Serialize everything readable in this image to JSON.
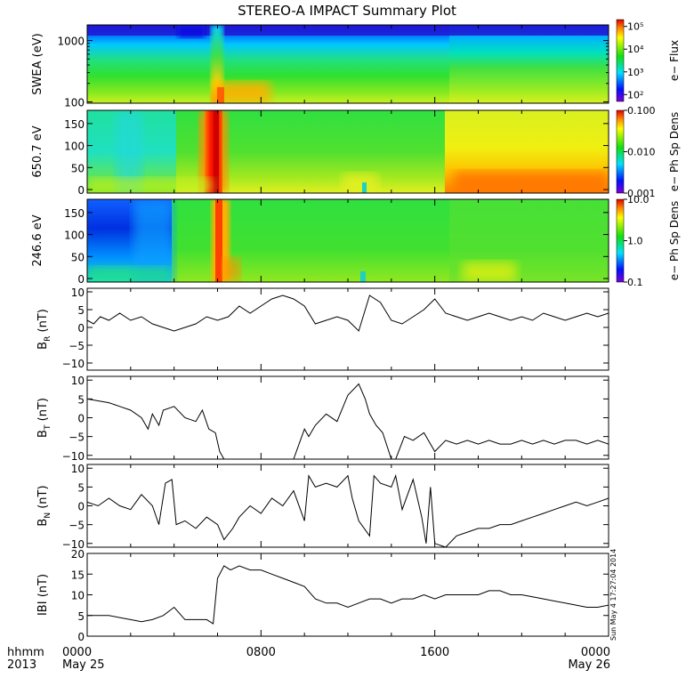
{
  "title": "STEREO-A IMPACT Summary Plot",
  "timestamp": "Sun May 4 17:27:04 2014",
  "x_axis": {
    "row1_label": "hhmm",
    "row2_label": "2013",
    "ticks": [
      {
        "hour": 0,
        "label": "0000",
        "date": "May 25"
      },
      {
        "hour": 8,
        "label": "0800",
        "date": ""
      },
      {
        "hour": 16,
        "label": "1600",
        "date": ""
      },
      {
        "hour": 24,
        "label": "0000",
        "date": "May 26"
      }
    ],
    "range_hours": [
      0,
      24
    ]
  },
  "chart_data": [
    {
      "type": "heatmap",
      "ylabel": "SWEA (eV)",
      "ylog": true,
      "ylim": [
        95,
        1800
      ],
      "yticks": [
        {
          "v": 100,
          "label": "100"
        },
        {
          "v": 1000,
          "label": "1000"
        }
      ],
      "colorbar_label": "e− Flux",
      "colorbar_log": true,
      "colorbar_range": [
        50,
        200000
      ],
      "colorbar_ticks": [
        {
          "v": 100,
          "label": "10²"
        },
        {
          "v": 1000,
          "label": "10³"
        },
        {
          "v": 10000,
          "label": "10⁴"
        },
        {
          "v": 100000,
          "label": "10⁵"
        }
      ],
      "features": [
        {
          "hour": 6.0,
          "kind": "enhancement"
        },
        {
          "hour": 16.6,
          "kind": "transition"
        }
      ]
    },
    {
      "type": "heatmap",
      "ylabel": "650.7 eV",
      "ylim": [
        -8,
        180
      ],
      "yticks": [
        {
          "v": 0,
          "label": "0"
        },
        {
          "v": 50,
          "label": "50"
        },
        {
          "v": 100,
          "label": "100"
        },
        {
          "v": 150,
          "label": "150"
        }
      ],
      "colorbar_label": "e− Ph Sp Dens",
      "colorbar_log": true,
      "colorbar_range": [
        0.001,
        0.1
      ],
      "colorbar_ticks": [
        {
          "v": 0.001,
          "label": "0.001"
        },
        {
          "v": 0.01,
          "label": "0.010"
        },
        {
          "v": 0.1,
          "label": "0.100"
        }
      ],
      "features": [
        {
          "hour": 5.9,
          "kind": "high-density band"
        },
        {
          "hour": 16.6,
          "kind": "transition"
        }
      ]
    },
    {
      "type": "heatmap",
      "ylabel": "246.6 eV",
      "ylim": [
        -8,
        180
      ],
      "yticks": [
        {
          "v": 0,
          "label": "0"
        },
        {
          "v": 50,
          "label": "50"
        },
        {
          "v": 100,
          "label": "100"
        },
        {
          "v": 150,
          "label": "150"
        }
      ],
      "colorbar_label": "e− Ph Sp Dens",
      "colorbar_log": true,
      "colorbar_range": [
        0.1,
        10
      ],
      "colorbar_ticks": [
        {
          "v": 0.1,
          "label": "0.1"
        },
        {
          "v": 1,
          "label": "1.0"
        },
        {
          "v": 10,
          "label": "10.0"
        }
      ],
      "features": [
        {
          "hour": 5.9,
          "kind": "high-density band"
        },
        {
          "hour": 4.0,
          "kind": "transition"
        }
      ]
    },
    {
      "type": "line",
      "ylabel": "BR (nT)",
      "ylabel_main": "B",
      "ylabel_sub": "R",
      "ylabel_unit": "(nT)",
      "ylim": [
        -12,
        11
      ],
      "yticks": [
        {
          "v": -10,
          "label": "−10"
        },
        {
          "v": -5,
          "label": "−5"
        },
        {
          "v": 0,
          "label": "0"
        },
        {
          "v": 5,
          "label": "5"
        },
        {
          "v": 10,
          "label": "10"
        }
      ],
      "x": [
        0,
        0.3,
        0.6,
        1,
        1.5,
        2,
        2.5,
        3,
        3.5,
        4,
        4.5,
        5,
        5.5,
        6,
        6.5,
        7,
        7.5,
        8,
        8.5,
        9,
        9.5,
        10,
        10.5,
        11,
        11.5,
        12,
        12.5,
        13,
        13.5,
        14,
        14.5,
        15,
        15.5,
        16,
        16.5,
        17,
        17.5,
        18,
        18.5,
        19,
        19.5,
        20,
        20.5,
        21,
        21.5,
        22,
        22.5,
        23,
        23.5,
        24
      ],
      "values": [
        2,
        1,
        3,
        2,
        4,
        2,
        3,
        1,
        0,
        -1,
        0,
        1,
        3,
        2,
        3,
        6,
        4,
        6,
        8,
        9,
        8,
        6,
        1,
        2,
        3,
        2,
        -1,
        9,
        7,
        2,
        1,
        3,
        5,
        8,
        4,
        3,
        2,
        3,
        4,
        3,
        2,
        3,
        2,
        4,
        3,
        2,
        3,
        4,
        3,
        4
      ]
    },
    {
      "type": "line",
      "ylabel": "BT (nT)",
      "ylabel_main": "B",
      "ylabel_sub": "T",
      "ylabel_unit": "(nT)",
      "ylim": [
        -11,
        11
      ],
      "yticks": [
        {
          "v": -10,
          "label": "−10"
        },
        {
          "v": -5,
          "label": "−5"
        },
        {
          "v": 0,
          "label": "0"
        },
        {
          "v": 5,
          "label": "5"
        },
        {
          "v": 10,
          "label": "10"
        }
      ],
      "x": [
        0,
        0.5,
        1,
        1.5,
        2,
        2.5,
        2.8,
        3,
        3.3,
        3.5,
        4,
        4.5,
        5,
        5.3,
        5.6,
        5.9,
        6.1,
        6.3,
        9.5,
        10,
        10.2,
        10.5,
        11,
        11.5,
        12,
        12.5,
        12.8,
        13,
        13.3,
        13.6,
        14,
        14.2,
        14.6,
        15,
        15.5,
        16,
        16.5,
        17,
        17.5,
        18,
        18.5,
        19,
        19.5,
        20,
        20.5,
        21,
        21.5,
        22,
        22.5,
        23,
        23.5,
        24
      ],
      "values": [
        5,
        4.5,
        4,
        3,
        2,
        0,
        -3,
        1,
        -2,
        2,
        3,
        0,
        -1,
        2,
        -3,
        -4,
        -9,
        -11,
        -11,
        -3,
        -5,
        -2,
        1,
        -1,
        6,
        9,
        5,
        1,
        -2,
        -4,
        -11,
        -11,
        -5,
        -6,
        -4,
        -9,
        -6,
        -7,
        -6,
        -7,
        -6,
        -7,
        -7,
        -6,
        -7,
        -6,
        -7,
        -6,
        -6,
        -7,
        -6,
        -7
      ]
    },
    {
      "type": "line",
      "ylabel": "BN (nT)",
      "ylabel_main": "B",
      "ylabel_sub": "N",
      "ylabel_unit": "(nT)",
      "ylim": [
        -11,
        11
      ],
      "yticks": [
        {
          "v": -10,
          "label": "−10"
        },
        {
          "v": -5,
          "label": "−5"
        },
        {
          "v": 0,
          "label": "0"
        },
        {
          "v": 5,
          "label": "5"
        },
        {
          "v": 10,
          "label": "10"
        }
      ],
      "x": [
        0,
        0.5,
        1,
        1.5,
        2,
        2.5,
        3,
        3.3,
        3.6,
        3.9,
        4.1,
        4.5,
        5,
        5.5,
        6,
        6.3,
        6.7,
        7,
        7.5,
        8,
        8.5,
        9,
        9.5,
        10,
        10.2,
        10.5,
        11,
        11.5,
        12,
        12.2,
        12.5,
        13,
        13.2,
        13.5,
        14,
        14.2,
        14.5,
        15,
        15.4,
        15.6,
        15.8,
        16,
        16.5,
        17,
        17.5,
        18,
        18.5,
        19,
        19.5,
        20,
        20.5,
        21,
        21.5,
        22,
        22.5,
        23,
        23.5,
        24
      ],
      "values": [
        1,
        0,
        2,
        0,
        -1,
        3,
        0,
        -5,
        6,
        7,
        -5,
        -4,
        -6,
        -3,
        -5,
        -9,
        -6,
        -3,
        0,
        -2,
        2,
        0,
        4,
        -4,
        8,
        5,
        6,
        5,
        8,
        2,
        -4,
        -8,
        8,
        6,
        5,
        8,
        -1,
        7,
        -3,
        -10,
        5,
        -10,
        -11,
        -8,
        -7,
        -6,
        -6,
        -5,
        -5,
        -4,
        -3,
        -2,
        -1,
        0,
        1,
        0,
        1,
        2
      ]
    },
    {
      "type": "line",
      "ylabel": "|B| (nT)",
      "ylabel_main": "IBI",
      "ylabel_sub": "",
      "ylabel_unit": "(nT)",
      "ylim": [
        0,
        20
      ],
      "yticks": [
        {
          "v": 0,
          "label": "0"
        },
        {
          "v": 5,
          "label": "5"
        },
        {
          "v": 10,
          "label": "10"
        },
        {
          "v": 15,
          "label": "15"
        },
        {
          "v": 20,
          "label": "20"
        }
      ],
      "x": [
        0,
        0.5,
        1,
        1.5,
        2,
        2.5,
        3,
        3.5,
        4,
        4.5,
        5,
        5.5,
        5.8,
        6,
        6.3,
        6.6,
        7,
        7.5,
        8,
        8.5,
        9,
        9.5,
        10,
        10.5,
        11,
        11.5,
        12,
        12.5,
        13,
        13.5,
        14,
        14.5,
        15,
        15.5,
        16,
        16.5,
        17,
        17.5,
        18,
        18.5,
        19,
        19.5,
        20,
        20.5,
        21,
        21.5,
        22,
        22.5,
        23,
        23.5,
        24
      ],
      "values": [
        5,
        5,
        5,
        4.5,
        4,
        3.5,
        4,
        5,
        7,
        4,
        4,
        4,
        3,
        14,
        17,
        16,
        17,
        16,
        16,
        15,
        14,
        13,
        12,
        9,
        8,
        8,
        7,
        8,
        9,
        9,
        8,
        9,
        9,
        10,
        9,
        10,
        10,
        10,
        10,
        11,
        11,
        10,
        10,
        9.5,
        9,
        8.5,
        8,
        7.5,
        7,
        7,
        7.5
      ]
    }
  ]
}
